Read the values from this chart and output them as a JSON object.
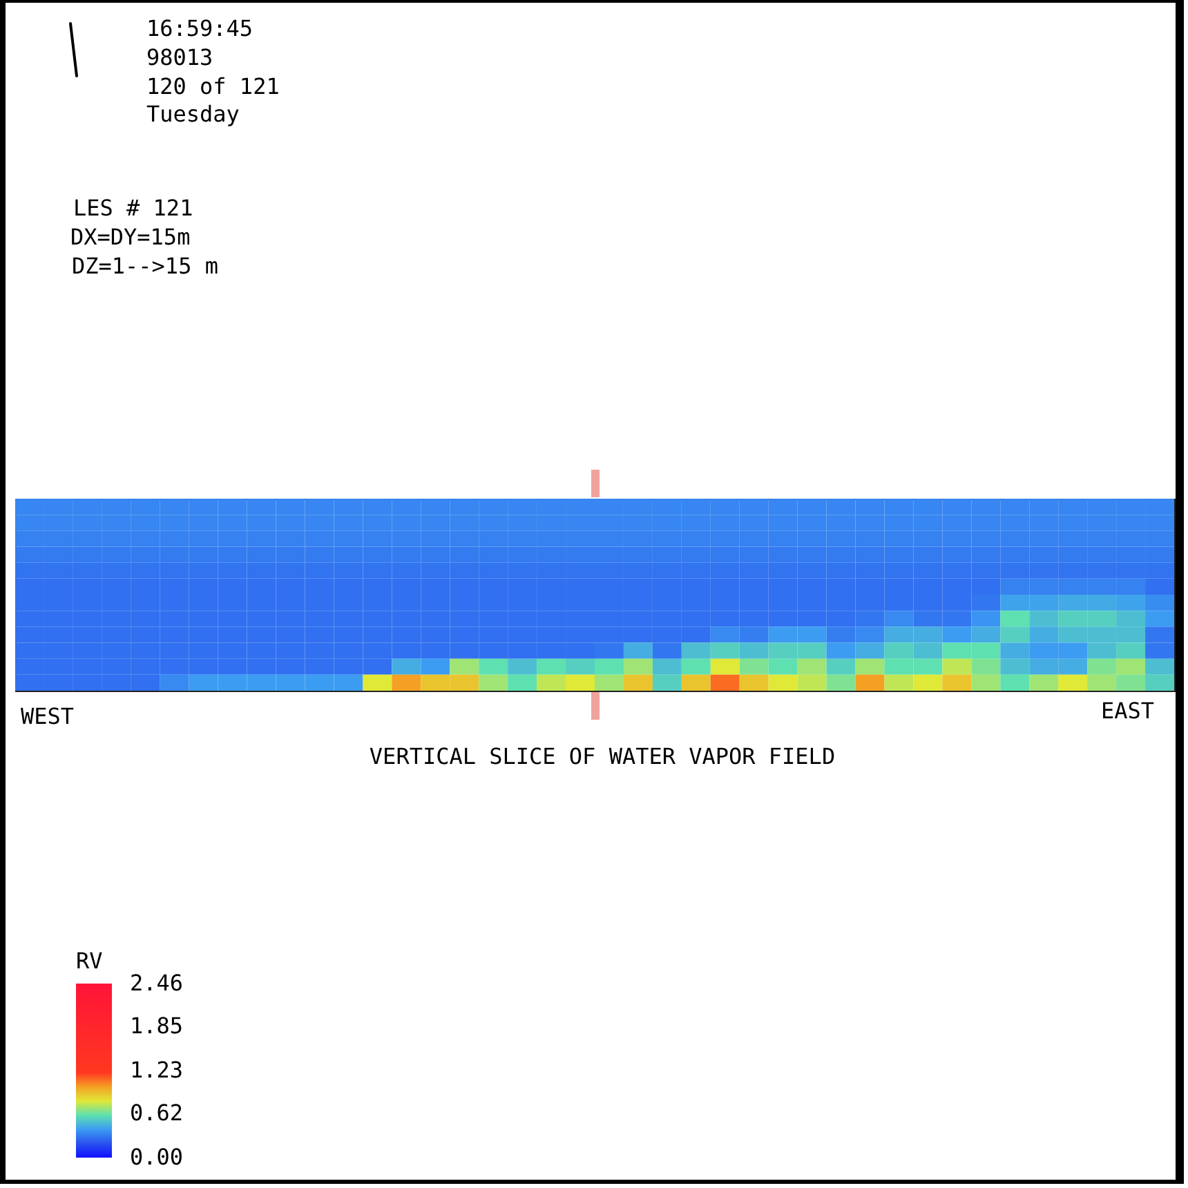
{
  "chart_data": {
    "type": "heatmap",
    "title": "VERTICAL SLICE OF WATER VAPOR FIELD",
    "annotations": [
      "16:59:45",
      "98013",
      "120 of 121",
      "Tuesday",
      "LES # 121",
      "DX=DY=15m",
      "DZ=1-->15 m",
      "WEST",
      "EAST"
    ],
    "categories": [
      null,
      null,
      null,
      null,
      null,
      null,
      null,
      null,
      null,
      null,
      null,
      null,
      null,
      null,
      null,
      null,
      null,
      null,
      null,
      null,
      null,
      null,
      null,
      null,
      null,
      null,
      null,
      null,
      null,
      null,
      null,
      null,
      null,
      null,
      null,
      null,
      null,
      null,
      null,
      null
    ],
    "y_categories": [
      null,
      null,
      null,
      null,
      null,
      null,
      null,
      null,
      null,
      null,
      null,
      null
    ],
    "cells": [
      [
        0.34,
        0.34,
        0.34,
        0.34,
        0.34,
        0.34,
        0.34,
        0.34,
        0.34,
        0.34,
        0.34,
        0.34,
        0.34,
        0.34,
        0.34,
        0.34,
        0.34,
        0.34,
        0.34,
        0.34,
        0.34,
        0.34,
        0.34,
        0.34,
        0.34,
        0.34,
        0.34,
        0.34,
        0.34,
        0.34,
        0.34,
        0.34,
        0.34,
        0.34,
        0.34,
        0.34,
        0.34,
        0.34,
        0.34,
        0.34
      ],
      [
        0.34,
        0.34,
        0.34,
        0.34,
        0.34,
        0.34,
        0.34,
        0.34,
        0.34,
        0.34,
        0.34,
        0.34,
        0.34,
        0.34,
        0.34,
        0.34,
        0.34,
        0.34,
        0.34,
        0.34,
        0.34,
        0.34,
        0.34,
        0.34,
        0.34,
        0.34,
        0.34,
        0.34,
        0.34,
        0.34,
        0.34,
        0.34,
        0.34,
        0.34,
        0.34,
        0.34,
        0.34,
        0.34,
        0.34,
        0.34
      ],
      [
        0.33,
        0.33,
        0.33,
        0.33,
        0.33,
        0.33,
        0.33,
        0.33,
        0.33,
        0.33,
        0.33,
        0.33,
        0.33,
        0.33,
        0.33,
        0.33,
        0.33,
        0.33,
        0.33,
        0.33,
        0.33,
        0.33,
        0.33,
        0.33,
        0.33,
        0.33,
        0.33,
        0.33,
        0.33,
        0.33,
        0.33,
        0.33,
        0.33,
        0.33,
        0.33,
        0.33,
        0.33,
        0.33,
        0.33,
        0.33
      ],
      [
        0.31,
        0.31,
        0.31,
        0.31,
        0.31,
        0.31,
        0.31,
        0.31,
        0.31,
        0.31,
        0.31,
        0.31,
        0.31,
        0.31,
        0.31,
        0.31,
        0.31,
        0.31,
        0.31,
        0.31,
        0.31,
        0.31,
        0.31,
        0.31,
        0.31,
        0.31,
        0.31,
        0.31,
        0.31,
        0.31,
        0.31,
        0.31,
        0.31,
        0.31,
        0.31,
        0.31,
        0.31,
        0.31,
        0.31,
        0.31
      ],
      [
        0.29,
        0.29,
        0.29,
        0.29,
        0.29,
        0.29,
        0.29,
        0.29,
        0.29,
        0.29,
        0.29,
        0.29,
        0.29,
        0.29,
        0.29,
        0.29,
        0.29,
        0.29,
        0.29,
        0.29,
        0.29,
        0.29,
        0.29,
        0.29,
        0.29,
        0.29,
        0.29,
        0.29,
        0.29,
        0.29,
        0.29,
        0.29,
        0.29,
        0.29,
        0.29,
        0.29,
        0.29,
        0.29,
        0.29,
        0.29
      ],
      [
        0.28,
        0.28,
        0.28,
        0.28,
        0.28,
        0.28,
        0.28,
        0.28,
        0.28,
        0.28,
        0.28,
        0.28,
        0.28,
        0.28,
        0.28,
        0.28,
        0.28,
        0.28,
        0.28,
        0.28,
        0.28,
        0.28,
        0.28,
        0.28,
        0.28,
        0.28,
        0.28,
        0.28,
        0.28,
        0.28,
        0.28,
        0.28,
        0.28,
        0.28,
        0.33,
        0.33,
        0.33,
        0.33,
        0.33,
        0.28
      ],
      [
        0.28,
        0.28,
        0.28,
        0.28,
        0.28,
        0.28,
        0.28,
        0.28,
        0.28,
        0.28,
        0.28,
        0.28,
        0.28,
        0.28,
        0.28,
        0.28,
        0.28,
        0.28,
        0.28,
        0.28,
        0.28,
        0.28,
        0.28,
        0.28,
        0.28,
        0.28,
        0.28,
        0.28,
        0.28,
        0.28,
        0.28,
        0.28,
        0.28,
        0.3,
        0.42,
        0.42,
        0.44,
        0.44,
        0.42,
        0.36
      ],
      [
        0.28,
        0.28,
        0.28,
        0.28,
        0.28,
        0.28,
        0.28,
        0.28,
        0.28,
        0.28,
        0.28,
        0.28,
        0.28,
        0.28,
        0.28,
        0.28,
        0.28,
        0.28,
        0.28,
        0.28,
        0.28,
        0.28,
        0.28,
        0.28,
        0.28,
        0.28,
        0.28,
        0.28,
        0.28,
        0.3,
        0.35,
        0.3,
        0.3,
        0.38,
        0.6,
        0.5,
        0.55,
        0.55,
        0.5,
        0.4
      ],
      [
        0.28,
        0.28,
        0.28,
        0.28,
        0.28,
        0.28,
        0.28,
        0.28,
        0.28,
        0.28,
        0.28,
        0.28,
        0.28,
        0.28,
        0.28,
        0.28,
        0.28,
        0.28,
        0.28,
        0.28,
        0.28,
        0.28,
        0.28,
        0.28,
        0.35,
        0.32,
        0.4,
        0.4,
        0.32,
        0.35,
        0.45,
        0.45,
        0.4,
        0.45,
        0.55,
        0.45,
        0.5,
        0.5,
        0.5,
        0.3
      ],
      [
        0.28,
        0.28,
        0.28,
        0.28,
        0.28,
        0.28,
        0.28,
        0.28,
        0.28,
        0.28,
        0.28,
        0.28,
        0.28,
        0.28,
        0.28,
        0.28,
        0.28,
        0.28,
        0.28,
        0.28,
        0.3,
        0.45,
        0.3,
        0.5,
        0.55,
        0.5,
        0.55,
        0.55,
        0.4,
        0.45,
        0.55,
        0.5,
        0.6,
        0.6,
        0.45,
        0.4,
        0.4,
        0.5,
        0.55,
        0.3
      ],
      [
        0.28,
        0.28,
        0.28,
        0.28,
        0.28,
        0.28,
        0.28,
        0.28,
        0.28,
        0.28,
        0.28,
        0.28,
        0.28,
        0.45,
        0.4,
        0.7,
        0.6,
        0.5,
        0.6,
        0.55,
        0.6,
        0.7,
        0.5,
        0.6,
        0.8,
        0.65,
        0.6,
        0.7,
        0.55,
        0.7,
        0.6,
        0.6,
        0.75,
        0.65,
        0.5,
        0.45,
        0.45,
        0.65,
        0.7,
        0.5
      ],
      [
        0.28,
        0.28,
        0.28,
        0.28,
        0.28,
        0.35,
        0.4,
        0.4,
        0.4,
        0.4,
        0.4,
        0.4,
        0.8,
        1.0,
        0.9,
        0.9,
        0.7,
        0.6,
        0.75,
        0.8,
        0.7,
        0.9,
        0.55,
        0.9,
        1.1,
        0.9,
        0.8,
        0.75,
        0.65,
        1.0,
        0.75,
        0.8,
        0.9,
        0.7,
        0.6,
        0.7,
        0.8,
        0.7,
        0.65,
        0.55
      ]
    ],
    "clabel": "RV",
    "clim": [
      0,
      2.46
    ],
    "cticks": [
      {
        "value": 0,
        "label": "0.00"
      },
      0.62,
      1.23,
      1.85,
      2.46
    ]
  }
}
